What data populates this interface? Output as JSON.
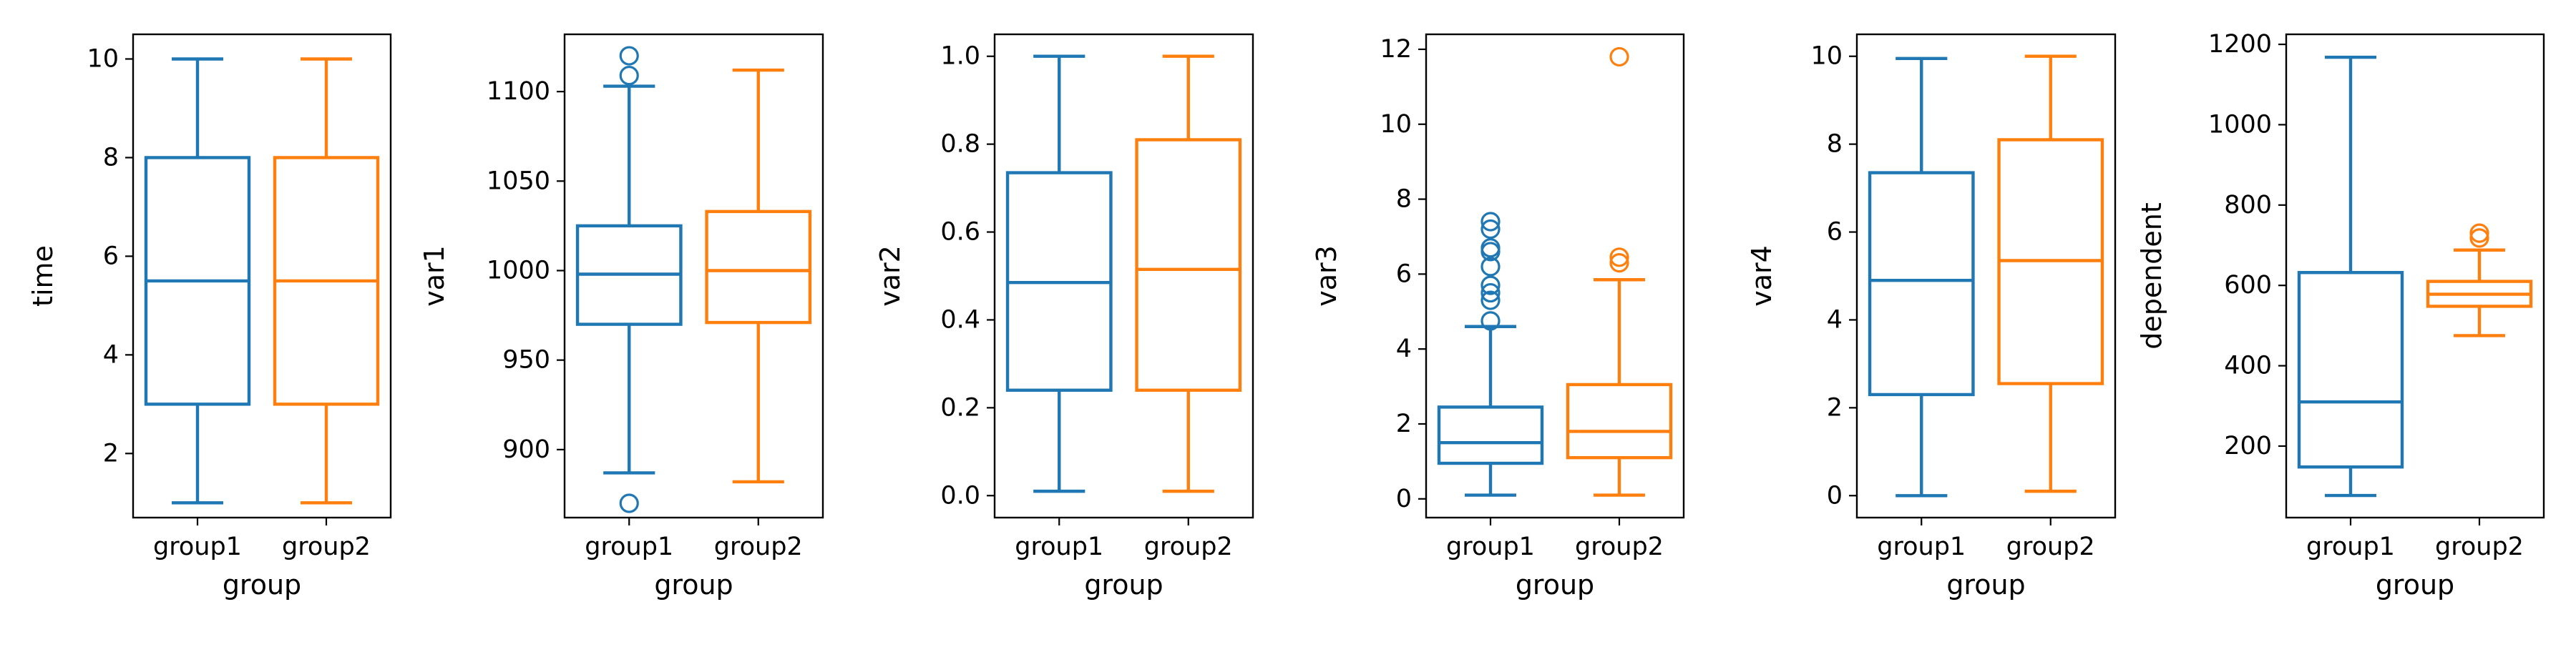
{
  "colors": {
    "group1": "#1f77b4",
    "group2": "#ff7f0e",
    "axis": "#000000",
    "background": "#ffffff"
  },
  "chart_data": [
    {
      "type": "box",
      "xlabel": "group",
      "ylabel": "time",
      "categories": [
        "group1",
        "group2"
      ],
      "ylim": [
        0.7,
        10.5
      ],
      "yticks": [
        2,
        4,
        6,
        8,
        10
      ],
      "grid": false,
      "boxes": [
        {
          "category": "group1",
          "whisker_low": 1,
          "q1": 3,
          "median": 5.5,
          "q3": 8,
          "whisker_high": 10,
          "outliers": []
        },
        {
          "category": "group2",
          "whisker_low": 1,
          "q1": 3,
          "median": 5.5,
          "q3": 8,
          "whisker_high": 10,
          "outliers": []
        }
      ]
    },
    {
      "type": "box",
      "xlabel": "group",
      "ylabel": "var1",
      "categories": [
        "group1",
        "group2"
      ],
      "ylim": [
        862,
        1132
      ],
      "yticks": [
        900,
        950,
        1000,
        1050,
        1100
      ],
      "grid": false,
      "boxes": [
        {
          "category": "group1",
          "whisker_low": 887,
          "q1": 970,
          "median": 998,
          "q3": 1025,
          "whisker_high": 1103,
          "outliers": [
            870,
            1109,
            1120
          ]
        },
        {
          "category": "group2",
          "whisker_low": 882,
          "q1": 971,
          "median": 1000,
          "q3": 1033,
          "whisker_high": 1112,
          "outliers": []
        }
      ]
    },
    {
      "type": "box",
      "xlabel": "group",
      "ylabel": "var2",
      "categories": [
        "group1",
        "group2"
      ],
      "ylim": [
        -0.05,
        1.05
      ],
      "yticks": [
        0.0,
        0.2,
        0.4,
        0.6,
        0.8,
        1.0
      ],
      "ytick_labels": [
        "0.0",
        "0.2",
        "0.4",
        "0.6",
        "0.8",
        "1.0"
      ],
      "grid": false,
      "boxes": [
        {
          "category": "group1",
          "whisker_low": 0.01,
          "q1": 0.24,
          "median": 0.485,
          "q3": 0.735,
          "whisker_high": 1.0,
          "outliers": []
        },
        {
          "category": "group2",
          "whisker_low": 0.01,
          "q1": 0.24,
          "median": 0.515,
          "q3": 0.81,
          "whisker_high": 1.0,
          "outliers": []
        }
      ]
    },
    {
      "type": "box",
      "xlabel": "group",
      "ylabel": "var3",
      "categories": [
        "group1",
        "group2"
      ],
      "ylim": [
        -0.5,
        12.4
      ],
      "yticks": [
        0,
        2,
        4,
        6,
        8,
        10,
        12
      ],
      "grid": false,
      "boxes": [
        {
          "category": "group1",
          "whisker_low": 0.1,
          "q1": 0.95,
          "median": 1.5,
          "q3": 2.45,
          "whisker_high": 4.6,
          "outliers": [
            4.75,
            5.3,
            5.5,
            5.7,
            6.2,
            6.6,
            6.7,
            7.2,
            7.4
          ]
        },
        {
          "category": "group2",
          "whisker_low": 0.1,
          "q1": 1.1,
          "median": 1.8,
          "q3": 3.05,
          "whisker_high": 5.85,
          "outliers": [
            6.3,
            6.45,
            11.8
          ]
        }
      ]
    },
    {
      "type": "box",
      "xlabel": "group",
      "ylabel": "var4",
      "categories": [
        "group1",
        "group2"
      ],
      "ylim": [
        -0.5,
        10.5
      ],
      "yticks": [
        0,
        2,
        4,
        6,
        8,
        10
      ],
      "grid": false,
      "boxes": [
        {
          "category": "group1",
          "whisker_low": 0.0,
          "q1": 2.3,
          "median": 4.9,
          "q3": 7.35,
          "whisker_high": 9.95,
          "outliers": []
        },
        {
          "category": "group2",
          "whisker_low": 0.1,
          "q1": 2.55,
          "median": 5.35,
          "q3": 8.1,
          "whisker_high": 10.0,
          "outliers": []
        }
      ]
    },
    {
      "type": "box",
      "xlabel": "group",
      "ylabel": "dependent",
      "categories": [
        "group1",
        "group2"
      ],
      "ylim": [
        22,
        1225
      ],
      "yticks": [
        200,
        400,
        600,
        800,
        1000,
        1200
      ],
      "grid": false,
      "boxes": [
        {
          "category": "group1",
          "whisker_low": 77,
          "q1": 148,
          "median": 310,
          "q3": 632,
          "whisker_high": 1168,
          "outliers": []
        },
        {
          "category": "group2",
          "whisker_low": 475,
          "q1": 548,
          "median": 578,
          "q3": 610,
          "whisker_high": 688,
          "outliers": [
            718,
            730
          ]
        }
      ]
    }
  ]
}
